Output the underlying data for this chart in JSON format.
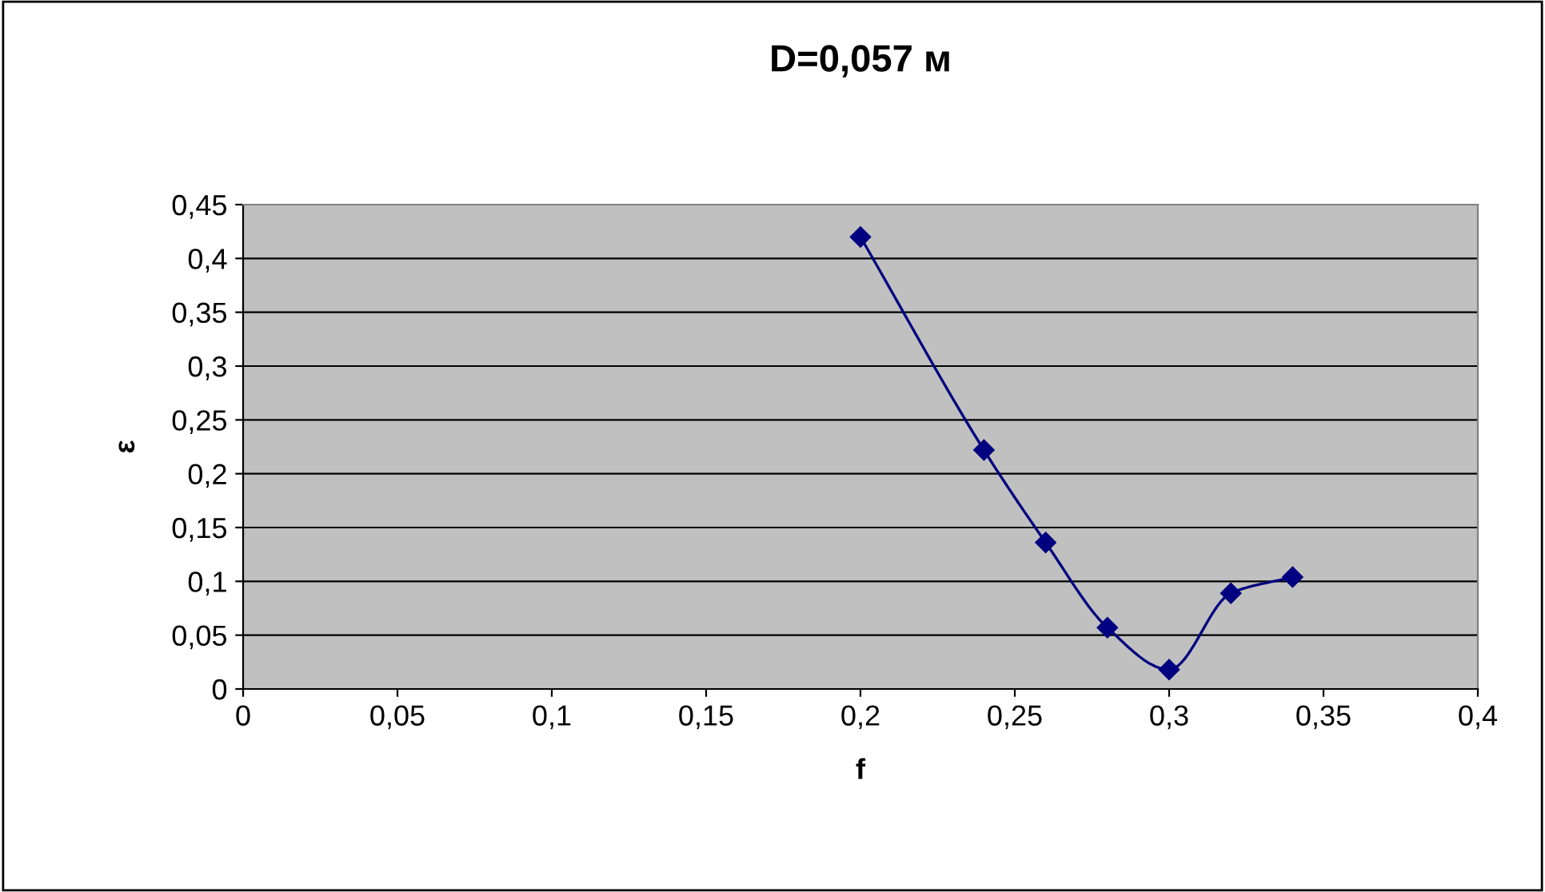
{
  "chart_data": {
    "type": "line",
    "title": "D=0,057 м",
    "xlabel": "f",
    "ylabel": "ε",
    "x": [
      0.2,
      0.24,
      0.26,
      0.28,
      0.3,
      0.32,
      0.34
    ],
    "series": [
      {
        "color": "#000080",
        "values": [
          0.42,
          0.222,
          0.136,
          0.057,
          0.018,
          0.089,
          0.104
        ]
      }
    ],
    "xlim": [
      0,
      0.4
    ],
    "xticks": [
      0,
      {
        "value": 0.05,
        "label": "0,05"
      },
      {
        "value": 0.1,
        "label": "0,1"
      },
      {
        "value": 0.15,
        "label": "0,15"
      },
      {
        "value": 0.2,
        "label": "0,2"
      },
      {
        "value": 0.25,
        "label": "0,25"
      },
      {
        "value": 0.3,
        "label": "0,3"
      },
      {
        "value": 0.35,
        "label": "0,35"
      },
      {
        "value": 0.4,
        "label": "0,4"
      }
    ],
    "ylim": [
      0,
      0.45
    ],
    "yticks": [
      0,
      {
        "value": 0.05,
        "label": "0,05"
      },
      {
        "value": 0.1,
        "label": "0,1"
      },
      {
        "value": 0.15,
        "label": "0,15"
      },
      {
        "value": 0.2,
        "label": "0,2"
      },
      {
        "value": 0.25,
        "label": "0,25"
      },
      {
        "value": 0.3,
        "label": "0,3"
      },
      {
        "value": 0.35,
        "label": "0,35"
      },
      {
        "value": 0.4,
        "label": "0,4"
      },
      {
        "value": 0.45,
        "label": "0,45"
      }
    ],
    "grid": "y",
    "marker": "diamond",
    "line_style": "solid",
    "legend": false
  }
}
